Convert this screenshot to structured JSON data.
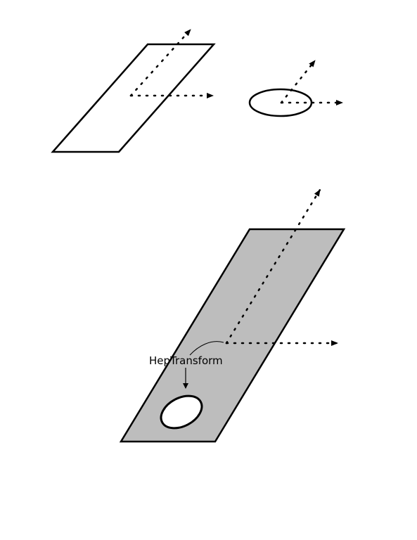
{
  "diagram": {
    "label": "HepTransform"
  },
  "colors": {
    "stroke": "#000000",
    "plane_fill": "#bdbdbd",
    "background": "#ffffff",
    "hole_fill": "#ffffff"
  },
  "icons": {
    "axis_arrow": "dotted-arrow-icon",
    "connector_arrow": "arrow-icon"
  }
}
